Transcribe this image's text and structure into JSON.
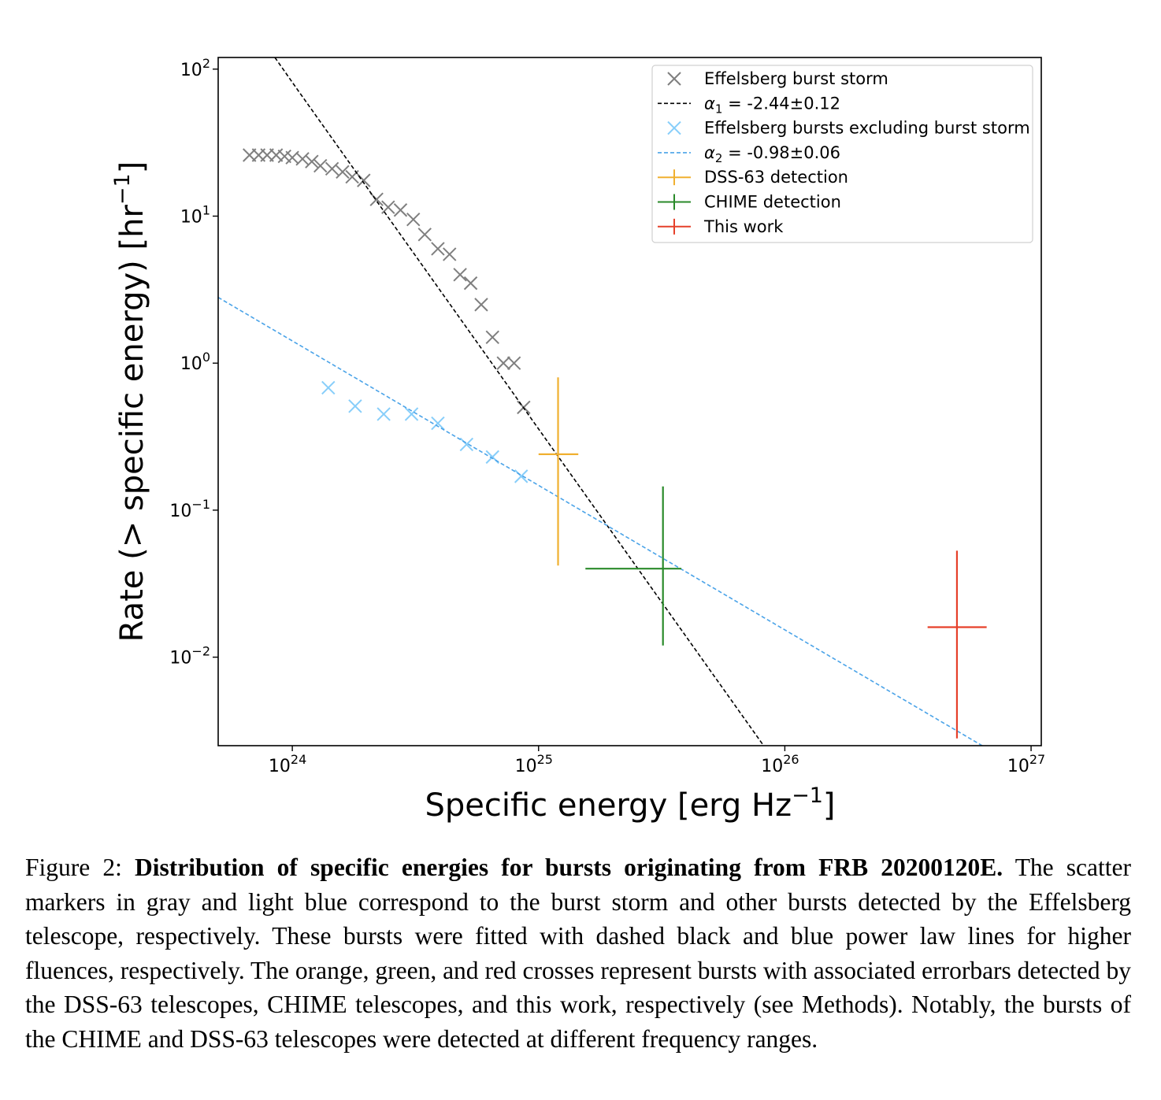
{
  "chart_data": {
    "type": "scatter",
    "xscale": "log",
    "yscale": "log",
    "xlim": [
      5e+23,
      1.1e+27
    ],
    "ylim": [
      0.0025,
      120
    ],
    "xlabel_base": "Specific energy [erg Hz",
    "xlabel_exp": "−1",
    "xlabel_close": "]",
    "ylabel_base": "Rate (> specific energy) [hr",
    "ylabel_exp": "−1",
    "ylabel_close": "]",
    "xticks": [
      {
        "value": 1e+24,
        "base": "10",
        "exp": "24"
      },
      {
        "value": 1e+25,
        "base": "10",
        "exp": "25"
      },
      {
        "value": 1e+26,
        "base": "10",
        "exp": "26"
      },
      {
        "value": 1e+27,
        "base": "10",
        "exp": "27"
      }
    ],
    "yticks": [
      {
        "value": 100,
        "base": "10",
        "exp": "2"
      },
      {
        "value": 10,
        "base": "10",
        "exp": "1"
      },
      {
        "value": 1,
        "base": "10",
        "exp": "0"
      },
      {
        "value": 0.1,
        "base": "10",
        "exp": "−1"
      },
      {
        "value": 0.01,
        "base": "10",
        "exp": "−2"
      }
    ],
    "legend_position": "top-right",
    "series": [
      {
        "name": "Effelsberg burst storm",
        "kind": "scatter",
        "color": "#7f7f7f",
        "x": [
          6.7e+23,
          7.3e+23,
          7.9e+23,
          8.6e+23,
          9.3e+23,
          1e+24,
          1.1e+24,
          1.2e+24,
          1.3e+24,
          1.45e+24,
          1.6e+24,
          1.75e+24,
          1.95e+24,
          2.2e+24,
          2.45e+24,
          2.75e+24,
          3.1e+24,
          3.45e+24,
          3.9e+24,
          4.35e+24,
          4.8e+24,
          5.3e+24,
          5.85e+24,
          6.5e+24,
          7.2e+24,
          7.95e+24,
          8.7e+24
        ],
        "y": [
          26,
          26,
          26,
          26,
          25.5,
          25,
          24.5,
          23.5,
          22,
          21,
          20,
          18.5,
          17.5,
          13,
          11.5,
          11,
          9.5,
          7.5,
          6,
          5.5,
          4,
          3.5,
          2.5,
          1.5,
          1.0,
          1.0,
          0.5
        ]
      },
      {
        "name": "α₁ = -2.44±0.12",
        "label_alpha": "α",
        "label_sub": "1",
        "label_rest": " = -2.44±0.12",
        "kind": "line",
        "style": "dashed",
        "color": "#000000",
        "x": [
          8.5e+23,
          1.05e+24,
          8.2e+25
        ],
        "y": [
          120,
          72.5,
          0.0025
        ]
      },
      {
        "name": "Effelsberg bursts excluding burst storm",
        "kind": "scatter",
        "color": "#87cefa",
        "x": [
          1.4e+24,
          1.8e+24,
          2.35e+24,
          3.05e+24,
          3.9e+24,
          5.1e+24,
          6.5e+24,
          8.5e+24
        ],
        "y": [
          0.68,
          0.51,
          0.45,
          0.45,
          0.39,
          0.28,
          0.23,
          0.17
        ]
      },
      {
        "name": "α₂ = -0.98±0.06",
        "label_alpha": "α",
        "label_sub": "2",
        "label_rest": " = -0.98±0.06",
        "kind": "line",
        "style": "dashed",
        "color": "#4aa3e8",
        "x": [
          5e+23,
          6.6e+26
        ],
        "y": [
          2.8,
          0.0024
        ]
      },
      {
        "name": "DSS-63 detection",
        "kind": "errorbar",
        "color": "#f0b030",
        "x": 1.2e+25,
        "y": 0.24,
        "xerr": [
          1e+25,
          1.45e+25
        ],
        "yerr": [
          0.042,
          0.8
        ]
      },
      {
        "name": "CHIME detection",
        "kind": "errorbar",
        "color": "#2a8a2a",
        "x": 3.2e+25,
        "y": 0.04,
        "xerr": [
          1.55e+25,
          3.8e+25
        ],
        "yerr": [
          0.012,
          0.145
        ]
      },
      {
        "name": "This work",
        "kind": "errorbar",
        "color": "#e6402a",
        "x": 5e+26,
        "y": 0.016,
        "xerr": [
          3.8e+26,
          6.6e+26
        ],
        "yerr": [
          0.0028,
          0.053
        ]
      }
    ]
  },
  "caption": {
    "prefix": "Figure 2: ",
    "title": "Distribution of specific energies for bursts originating from FRB 20200120E.",
    "body": " The scatter markers in gray and light blue correspond to the burst storm and other bursts detected by the Effelsberg telescope, respectively.  These bursts were fitted with dashed black and blue power law lines for higher fluences, respectively.  The orange, green, and red crosses represent bursts with associated errorbars detected by the DSS-63 telescopes, CHIME telescopes, and this work, respectively (see Methods). Notably, the bursts of the CHIME and DSS-63 telescopes were detected at different frequency ranges."
  }
}
